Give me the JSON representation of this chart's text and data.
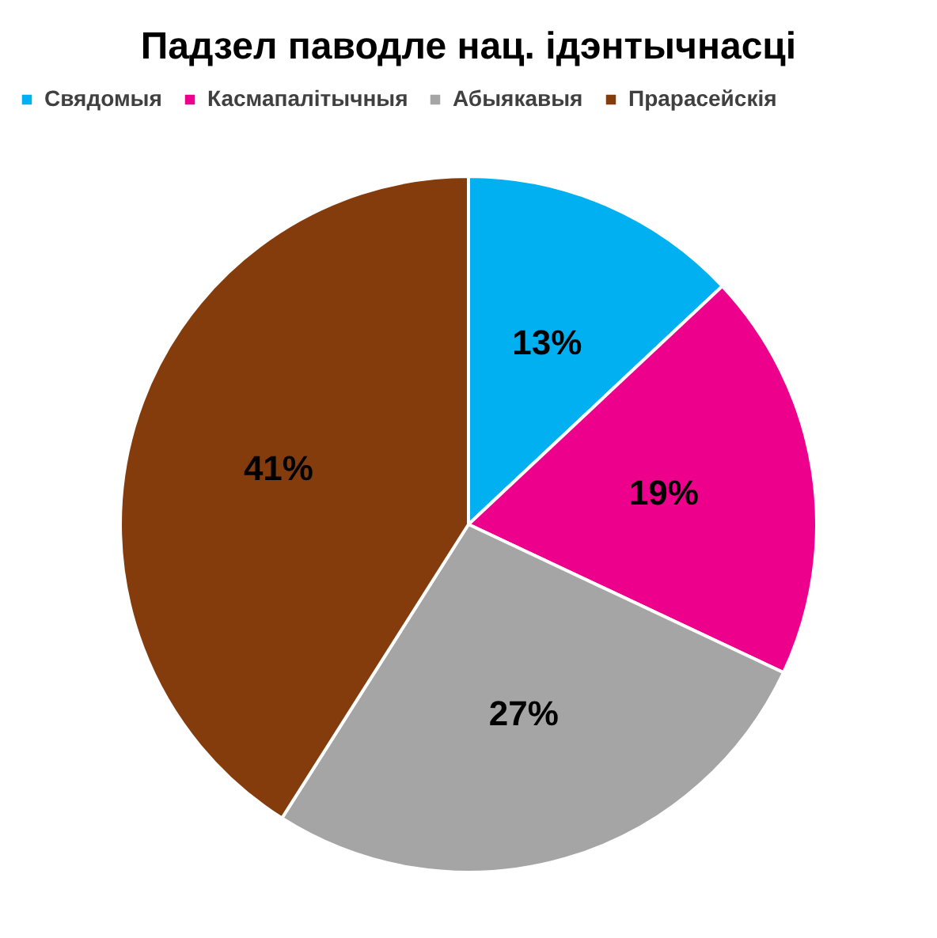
{
  "chart_data": {
    "type": "pie",
    "title": "Падзел паводле нац. ідэнтычнасці",
    "categories": [
      "Свядомыя",
      "Касмапалітычныя",
      "Абыякавыя",
      "Прарасейскія"
    ],
    "values": [
      13,
      19,
      27,
      41
    ],
    "colors": [
      "#00b0f0",
      "#ec008c",
      "#a5a5a5",
      "#843c0c"
    ],
    "value_labels": [
      "13%",
      "19%",
      "27%",
      "41%"
    ],
    "legend": "top"
  }
}
